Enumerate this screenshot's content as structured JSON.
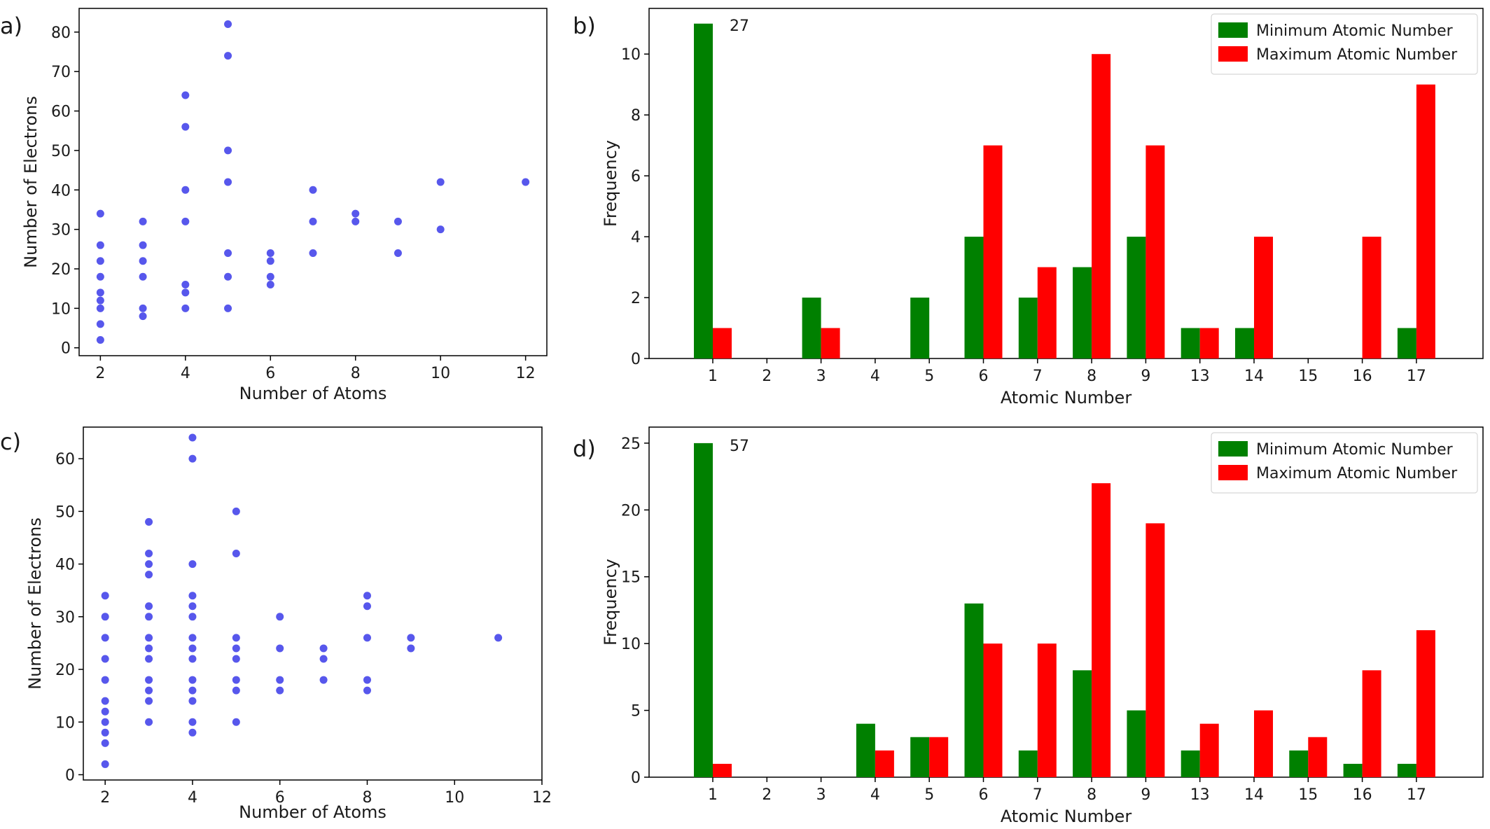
{
  "chart_data": [
    {
      "panel_label": "a)",
      "type": "scatter",
      "xlabel": "Number of Atoms",
      "ylabel": "Number of Electrons",
      "xlim": [
        1.5,
        12.5
      ],
      "ylim": [
        -2,
        86
      ],
      "xticks": [
        2,
        4,
        6,
        8,
        10,
        12
      ],
      "yticks": [
        0,
        10,
        20,
        30,
        40,
        50,
        60,
        70,
        80
      ],
      "point_color": "#1f1fe6",
      "points": [
        [
          2,
          2
        ],
        [
          2,
          6
        ],
        [
          2,
          10
        ],
        [
          2,
          12
        ],
        [
          2,
          14
        ],
        [
          2,
          18
        ],
        [
          2,
          22
        ],
        [
          2,
          26
        ],
        [
          2,
          34
        ],
        [
          3,
          8
        ],
        [
          3,
          10
        ],
        [
          3,
          18
        ],
        [
          3,
          22
        ],
        [
          3,
          26
        ],
        [
          3,
          32
        ],
        [
          4,
          10
        ],
        [
          4,
          14
        ],
        [
          4,
          16
        ],
        [
          4,
          32
        ],
        [
          4,
          40
        ],
        [
          4,
          56
        ],
        [
          4,
          64
        ],
        [
          5,
          10
        ],
        [
          5,
          18
        ],
        [
          5,
          24
        ],
        [
          5,
          42
        ],
        [
          5,
          50
        ],
        [
          5,
          74
        ],
        [
          5,
          82
        ],
        [
          6,
          16
        ],
        [
          6,
          18
        ],
        [
          6,
          22
        ],
        [
          6,
          24
        ],
        [
          7,
          24
        ],
        [
          7,
          32
        ],
        [
          7,
          40
        ],
        [
          8,
          32
        ],
        [
          8,
          34
        ],
        [
          9,
          24
        ],
        [
          9,
          32
        ],
        [
          10,
          30
        ],
        [
          10,
          42
        ],
        [
          12,
          42
        ]
      ]
    },
    {
      "panel_label": "b)",
      "type": "bar",
      "xlabel": "Atomic Number",
      "ylabel": "Frequency",
      "ylim": [
        0,
        11.5
      ],
      "yticks": [
        0,
        2,
        4,
        6,
        8,
        10
      ],
      "categories": [
        "1",
        "2",
        "3",
        "4",
        "5",
        "6",
        "7",
        "8",
        "9",
        "13",
        "14",
        "15",
        "16",
        "17"
      ],
      "annotation": "27",
      "legend_position": "top-right",
      "series": [
        {
          "name": "Minimum Atomic Number",
          "color": "#008000",
          "values": [
            11,
            0,
            2,
            0,
            2,
            4,
            2,
            3,
            4,
            1,
            1,
            0,
            0,
            1
          ]
        },
        {
          "name": "Maximum Atomic Number",
          "color": "#ff0000",
          "values": [
            1,
            0,
            1,
            0,
            0,
            7,
            3,
            10,
            7,
            1,
            4,
            0,
            4,
            9
          ]
        }
      ]
    },
    {
      "panel_label": "c)",
      "type": "scatter",
      "xlabel": "Number of Atoms",
      "ylabel": "Number of Electrons",
      "xlim": [
        1.5,
        12
      ],
      "ylim": [
        -1,
        66
      ],
      "xticks": [
        2,
        4,
        6,
        8,
        10,
        12
      ],
      "yticks": [
        0,
        10,
        20,
        30,
        40,
        50,
        60
      ],
      "point_color": "#1f1fe6",
      "points": [
        [
          2,
          2
        ],
        [
          2,
          6
        ],
        [
          2,
          8
        ],
        [
          2,
          10
        ],
        [
          2,
          12
        ],
        [
          2,
          14
        ],
        [
          2,
          18
        ],
        [
          2,
          22
        ],
        [
          2,
          26
        ],
        [
          2,
          30
        ],
        [
          2,
          34
        ],
        [
          3,
          10
        ],
        [
          3,
          14
        ],
        [
          3,
          16
        ],
        [
          3,
          18
        ],
        [
          3,
          22
        ],
        [
          3,
          24
        ],
        [
          3,
          26
        ],
        [
          3,
          30
        ],
        [
          3,
          32
        ],
        [
          3,
          38
        ],
        [
          3,
          40
        ],
        [
          3,
          42
        ],
        [
          3,
          48
        ],
        [
          4,
          8
        ],
        [
          4,
          10
        ],
        [
          4,
          14
        ],
        [
          4,
          16
        ],
        [
          4,
          18
        ],
        [
          4,
          22
        ],
        [
          4,
          24
        ],
        [
          4,
          26
        ],
        [
          4,
          30
        ],
        [
          4,
          32
        ],
        [
          4,
          34
        ],
        [
          4,
          40
        ],
        [
          4,
          60
        ],
        [
          4,
          64
        ],
        [
          5,
          10
        ],
        [
          5,
          16
        ],
        [
          5,
          18
        ],
        [
          5,
          22
        ],
        [
          5,
          24
        ],
        [
          5,
          26
        ],
        [
          5,
          42
        ],
        [
          5,
          50
        ],
        [
          6,
          16
        ],
        [
          6,
          18
        ],
        [
          6,
          24
        ],
        [
          6,
          30
        ],
        [
          7,
          18
        ],
        [
          7,
          22
        ],
        [
          7,
          24
        ],
        [
          8,
          16
        ],
        [
          8,
          18
        ],
        [
          8,
          26
        ],
        [
          8,
          32
        ],
        [
          8,
          34
        ],
        [
          9,
          24
        ],
        [
          9,
          26
        ],
        [
          11,
          26
        ]
      ]
    },
    {
      "panel_label": "d)",
      "type": "bar",
      "xlabel": "Atomic Number",
      "ylabel": "Frequency",
      "ylim": [
        0,
        26.2
      ],
      "yticks": [
        0,
        5,
        10,
        15,
        20,
        25
      ],
      "categories": [
        "1",
        "2",
        "3",
        "4",
        "5",
        "6",
        "7",
        "8",
        "9",
        "13",
        "14",
        "15",
        "16",
        "17"
      ],
      "annotation": "57",
      "legend_position": "top-right",
      "series": [
        {
          "name": "Minimum Atomic Number",
          "color": "#008000",
          "values": [
            25,
            0,
            0,
            4,
            3,
            13,
            2,
            8,
            5,
            2,
            0,
            2,
            1,
            1
          ]
        },
        {
          "name": "Maximum Atomic Number",
          "color": "#ff0000",
          "values": [
            1,
            0,
            0,
            2,
            3,
            10,
            10,
            22,
            19,
            4,
            5,
            3,
            8,
            11
          ]
        }
      ]
    }
  ]
}
